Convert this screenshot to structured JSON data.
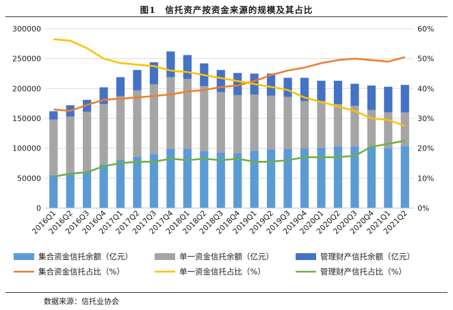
{
  "title": "图1　信托资产按资金来源的规模及其占比",
  "source": "数据来源：信托业协会",
  "colors": {
    "collective_bar": "#5B9BD5",
    "single_bar": "#A5A5A5",
    "managed_bar": "#4472C4",
    "collective_line": "#ED7D31",
    "single_line": "#FFC000",
    "managed_line": "#70AD47"
  },
  "chart_data": {
    "type": "bar",
    "stacked": true,
    "title": "信托资产按资金来源的规模及其占比",
    "categories": [
      "2016Q1",
      "2016Q2",
      "2016Q3",
      "2016Q4",
      "2017Q1",
      "2017Q2",
      "2017Q3",
      "2017Q4",
      "2018Q1",
      "2018Q2",
      "2018Q3",
      "2018Q4",
      "2019Q1",
      "2019Q2",
      "2019Q3",
      "2019Q4",
      "2020Q1",
      "2020Q2",
      "2020Q3",
      "2020Q4",
      "2021Q1",
      "2021Q2"
    ],
    "left_axis": {
      "ylim": [
        0,
        300000
      ],
      "ticks": [
        "0",
        "50000",
        "100000",
        "150000",
        "200000",
        "250000",
        "300000"
      ]
    },
    "right_axis": {
      "ylim": [
        0,
        60
      ],
      "ticks": [
        "0%",
        "10%",
        "20%",
        "30%",
        "40%",
        "50%",
        "60%"
      ]
    },
    "bar_series": [
      {
        "name": "集合资金信托余额（亿元）",
        "values": [
          55000,
          57000,
          61000,
          73000,
          81000,
          86000,
          90000,
          99000,
          99000,
          95000,
          93000,
          92000,
          96000,
          98000,
          99000,
          100000,
          101000,
          103000,
          103000,
          102000,
          100000,
          104000
        ]
      },
      {
        "name": "单一资金信托余额（亿元）",
        "values": [
          93000,
          96000,
          100000,
          101000,
          106000,
          111000,
          117000,
          120000,
          117000,
          109000,
          101000,
          97000,
          94000,
          90000,
          87000,
          79000,
          78000,
          71000,
          68000,
          62000,
          60000,
          56000
        ]
      },
      {
        "name": "管理财产信托余额（亿元）",
        "values": [
          14000,
          19000,
          20000,
          28000,
          32000,
          34000,
          37000,
          43000,
          40000,
          38000,
          37000,
          37000,
          35000,
          37000,
          32000,
          39000,
          34000,
          39000,
          37000,
          41000,
          43000,
          46000
        ]
      }
    ],
    "line_series": [
      {
        "name": "集合资金信托占比（%）",
        "values": [
          33,
          32.5,
          34.5,
          36.2,
          36.6,
          37,
          37.5,
          38,
          39,
          39.5,
          40.5,
          41,
          42.5,
          44.5,
          46,
          47,
          48.5,
          49.5,
          50,
          49.5,
          49,
          50.5
        ]
      },
      {
        "name": "单一资金信托占比（%）",
        "values": [
          56.5,
          56,
          53.5,
          50,
          48.5,
          48,
          47.5,
          46,
          45.5,
          44.5,
          43.5,
          42.5,
          41.5,
          40.5,
          39.5,
          37,
          35.5,
          34,
          32.5,
          30,
          29.5,
          27.5
        ]
      },
      {
        "name": "管理财产信托占比（%）",
        "values": [
          10.5,
          11.5,
          12,
          14,
          15,
          15.5,
          15.5,
          16.5,
          16,
          16.5,
          16,
          16.5,
          15.5,
          15.5,
          16,
          17,
          17,
          17,
          17.5,
          20.5,
          21.5,
          22.5
        ]
      }
    ]
  }
}
